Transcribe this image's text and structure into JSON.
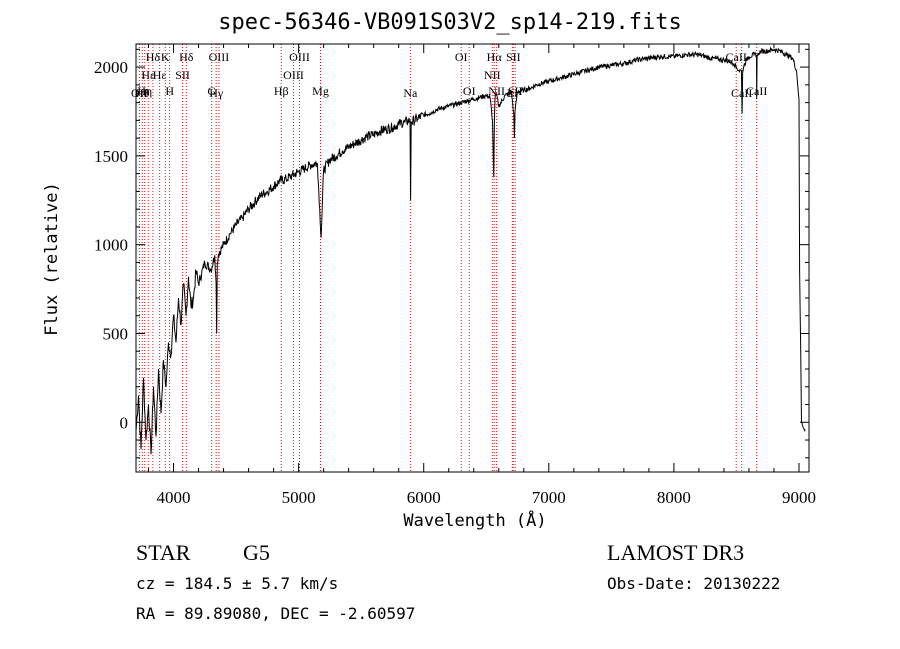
{
  "footer": {
    "object_class": "STAR",
    "subclass": "G5",
    "survey": "LAMOST DR3",
    "cz": "cz = 184.5 ± 5.7 km/s",
    "obs_date": "Obs-Date: 20130222",
    "radec": "RA =  89.89080, DEC =  -2.60597"
  },
  "chart_data": {
    "type": "line",
    "title": "spec-56346-VB091S03V2_sp14-219.fits",
    "xlabel": "Wavelength (Å)",
    "ylabel": "Flux (relative)",
    "xlim": [
      3700,
      9080
    ],
    "ylim": [
      -280,
      2130
    ],
    "xticks": [
      4000,
      5000,
      6000,
      7000,
      8000,
      9000
    ],
    "yticks": [
      0,
      500,
      1000,
      1500,
      2000
    ],
    "series": [
      {
        "name": "flux",
        "color": "#000000",
        "x": [
          3700,
          3720,
          3740,
          3760,
          3780,
          3800,
          3820,
          3840,
          3860,
          3880,
          3900,
          3920,
          3940,
          3960,
          3980,
          4000,
          4020,
          4040,
          4060,
          4080,
          4100,
          4120,
          4140,
          4160,
          4180,
          4200,
          4250,
          4300,
          4330,
          4340,
          4345,
          4350,
          4360,
          4400,
          4450,
          4500,
          4550,
          4600,
          4650,
          4700,
          4750,
          4800,
          4850,
          4900,
          4950,
          5000,
          5050,
          5100,
          5150,
          5180,
          5200,
          5250,
          5300,
          5350,
          5400,
          5450,
          5500,
          5550,
          5600,
          5650,
          5700,
          5750,
          5800,
          5850,
          5890,
          5895,
          5900,
          5950,
          6000,
          6050,
          6100,
          6150,
          6200,
          6250,
          6300,
          6350,
          6400,
          6450,
          6500,
          6530,
          6550,
          6560,
          6565,
          6570,
          6580,
          6600,
          6650,
          6700,
          6720,
          6725,
          6730,
          6750,
          6800,
          6850,
          6900,
          6950,
          7000,
          7100,
          7200,
          7300,
          7400,
          7500,
          7600,
          7700,
          7800,
          7900,
          8000,
          8100,
          8200,
          8300,
          8400,
          8450,
          8480,
          8500,
          8520,
          8540,
          8545,
          8550,
          8560,
          8580,
          8600,
          8640,
          8660,
          8662,
          8665,
          8680,
          8700,
          8750,
          8800,
          8850,
          8900,
          8950,
          8980,
          9000,
          9005,
          9010,
          9020,
          9030,
          9050
        ],
        "y": [
          -50,
          150,
          -150,
          250,
          -100,
          100,
          -180,
          200,
          -80,
          300,
          50,
          350,
          200,
          450,
          380,
          600,
          450,
          700,
          550,
          780,
          600,
          820,
          650,
          700,
          850,
          780,
          900,
          860,
          940,
          780,
          500,
          900,
          950,
          1000,
          1060,
          1110,
          1150,
          1200,
          1240,
          1280,
          1300,
          1330,
          1360,
          1370,
          1390,
          1410,
          1430,
          1450,
          1460,
          1040,
          1420,
          1480,
          1500,
          1530,
          1550,
          1570,
          1590,
          1610,
          1620,
          1640,
          1650,
          1660,
          1680,
          1690,
          1700,
          1250,
          1690,
          1710,
          1730,
          1740,
          1760,
          1770,
          1780,
          1790,
          1800,
          1810,
          1820,
          1830,
          1840,
          1830,
          1700,
          1380,
          1700,
          1820,
          1850,
          1780,
          1840,
          1860,
          1740,
          1600,
          1750,
          1860,
          1870,
          1880,
          1900,
          1910,
          1920,
          1940,
          1960,
          1980,
          2000,
          2010,
          2020,
          2040,
          2050,
          2060,
          2060,
          2070,
          2070,
          2050,
          2040,
          2030,
          2020,
          2000,
          1980,
          1980,
          1740,
          1980,
          2010,
          2040,
          2060,
          2070,
          2070,
          1820,
          2060,
          2080,
          2090,
          2090,
          2100,
          2090,
          2070,
          2050,
          1980,
          1820,
          860,
          600,
          0,
          -20,
          -40
        ]
      }
    ],
    "lines": [
      {
        "name": "OII",
        "x": 3727,
        "row": 2
      },
      {
        "name": "Hθ",
        "x": 3750,
        "row": 2
      },
      {
        "name": "Hη",
        "x": 3770,
        "row": 3
      },
      {
        "name": "Hε",
        "x": 3798,
        "row": 1
      },
      {
        "name": "Hδ",
        "x": 3835,
        "row": 0
      },
      {
        "name": "Hε",
        "x": 3889,
        "row": 1
      },
      {
        "name": "K",
        "x": 3934,
        "row": 0
      },
      {
        "name": "H",
        "x": 3969,
        "row": 3
      },
      {
        "name": "SII",
        "x": 4072,
        "row": 1
      },
      {
        "name": "Hδ",
        "x": 4102,
        "row": 0
      },
      {
        "name": "Hγ",
        "x": 4341,
        "row": 2
      },
      {
        "name": "OIII",
        "x": 4363,
        "row": 0
      },
      {
        "name": "G",
        "x": 4305,
        "row": 3
      },
      {
        "name": "Hβ",
        "x": 4861,
        "row": 3
      },
      {
        "name": "OIII",
        "x": 4959,
        "row": 1
      },
      {
        "name": "OIII",
        "x": 5007,
        "row": 0
      },
      {
        "name": "Mg",
        "x": 5175,
        "row": 3
      },
      {
        "name": "Na",
        "x": 5893,
        "row": 2
      },
      {
        "name": "OI",
        "x": 6300,
        "row": 0
      },
      {
        "name": "OI",
        "x": 6364,
        "row": 3
      },
      {
        "name": "NII",
        "x": 6548,
        "row": 1
      },
      {
        "name": "Hα",
        "x": 6563,
        "row": 0
      },
      {
        "name": "NII",
        "x": 6583,
        "row": 3
      },
      {
        "name": "Li",
        "x": 6708,
        "row": 2
      },
      {
        "name": "SII",
        "x": 6716,
        "row": 0
      },
      {
        "name": "SII",
        "x": 6731,
        "row": 3
      },
      {
        "name": "CaII",
        "x": 8498,
        "row": 0
      },
      {
        "name": "CaII",
        "x": 8542,
        "row": 2
      },
      {
        "name": "CaII",
        "x": 8662,
        "row": 3
      }
    ]
  }
}
